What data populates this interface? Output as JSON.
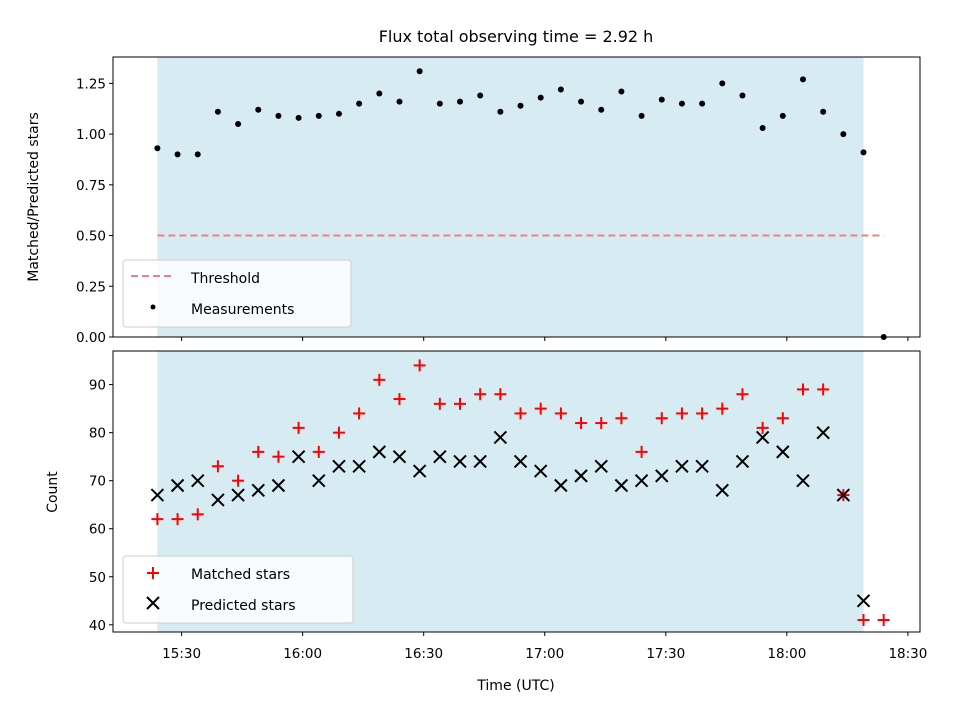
{
  "chart_data": [
    {
      "type": "scatter",
      "title": "Flux total observing time = 2.92 h",
      "xlabel": "",
      "ylabel": "Matched/Predicted stars",
      "ylim": [
        0,
        1.38
      ],
      "yticks": [
        "0.00",
        "0.25",
        "0.50",
        "0.75",
        "1.00",
        "1.25"
      ],
      "xtick_labels_visible": false,
      "threshold": {
        "name": "Threshold",
        "value": 0.5,
        "color": "#f08080"
      },
      "series": [
        {
          "name": "Measurements",
          "color": "#000000",
          "marker": "dot",
          "points": [
            [
              "15:24",
              0.93
            ],
            [
              "15:29",
              0.9
            ],
            [
              "15:34",
              0.9
            ],
            [
              "15:39",
              1.11
            ],
            [
              "15:44",
              1.05
            ],
            [
              "15:49",
              1.12
            ],
            [
              "15:54",
              1.09
            ],
            [
              "15:59",
              1.08
            ],
            [
              "16:04",
              1.09
            ],
            [
              "16:09",
              1.1
            ],
            [
              "16:14",
              1.15
            ],
            [
              "16:19",
              1.2
            ],
            [
              "16:24",
              1.16
            ],
            [
              "16:29",
              1.31
            ],
            [
              "16:34",
              1.15
            ],
            [
              "16:39",
              1.16
            ],
            [
              "16:44",
              1.19
            ],
            [
              "16:49",
              1.11
            ],
            [
              "16:54",
              1.14
            ],
            [
              "16:59",
              1.18
            ],
            [
              "17:04",
              1.22
            ],
            [
              "17:09",
              1.16
            ],
            [
              "17:14",
              1.12
            ],
            [
              "17:19",
              1.21
            ],
            [
              "17:24",
              1.09
            ],
            [
              "17:29",
              1.17
            ],
            [
              "17:34",
              1.15
            ],
            [
              "17:39",
              1.15
            ],
            [
              "17:44",
              1.25
            ],
            [
              "17:49",
              1.19
            ],
            [
              "17:54",
              1.03
            ],
            [
              "17:59",
              1.09
            ],
            [
              "18:04",
              1.27
            ],
            [
              "18:09",
              1.11
            ],
            [
              "18:14",
              1.0
            ],
            [
              "18:19",
              0.91
            ],
            [
              "18:24",
              0.0
            ]
          ]
        }
      ]
    },
    {
      "type": "scatter",
      "title": "",
      "xlabel": "Time (UTC)",
      "ylabel": "Count",
      "ylim": [
        38.5,
        97
      ],
      "yticks": [
        "40",
        "50",
        "60",
        "70",
        "80",
        "90"
      ],
      "xticks": [
        "15:30",
        "16:00",
        "16:30",
        "17:00",
        "17:30",
        "18:00",
        "18:30"
      ],
      "series": [
        {
          "name": "Matched stars",
          "color": "#ff0000",
          "marker": "plus",
          "points": [
            [
              "15:24",
              62
            ],
            [
              "15:29",
              62
            ],
            [
              "15:34",
              63
            ],
            [
              "15:39",
              73
            ],
            [
              "15:44",
              70
            ],
            [
              "15:49",
              76
            ],
            [
              "15:54",
              75
            ],
            [
              "15:59",
              81
            ],
            [
              "16:04",
              76
            ],
            [
              "16:09",
              80
            ],
            [
              "16:14",
              84
            ],
            [
              "16:19",
              91
            ],
            [
              "16:24",
              87
            ],
            [
              "16:29",
              94
            ],
            [
              "16:34",
              86
            ],
            [
              "16:39",
              86
            ],
            [
              "16:44",
              88
            ],
            [
              "16:49",
              88
            ],
            [
              "16:54",
              84
            ],
            [
              "16:59",
              85
            ],
            [
              "17:04",
              84
            ],
            [
              "17:09",
              82
            ],
            [
              "17:14",
              82
            ],
            [
              "17:19",
              83
            ],
            [
              "17:24",
              76
            ],
            [
              "17:29",
              83
            ],
            [
              "17:34",
              84
            ],
            [
              "17:39",
              84
            ],
            [
              "17:44",
              85
            ],
            [
              "17:49",
              88
            ],
            [
              "17:54",
              81
            ],
            [
              "17:59",
              83
            ],
            [
              "18:04",
              89
            ],
            [
              "18:09",
              89
            ],
            [
              "18:14",
              67
            ],
            [
              "18:19",
              41
            ],
            [
              "18:24",
              41
            ]
          ]
        },
        {
          "name": "Predicted stars",
          "color": "#000000",
          "marker": "x",
          "points": [
            [
              "15:24",
              67
            ],
            [
              "15:29",
              69
            ],
            [
              "15:34",
              70
            ],
            [
              "15:39",
              66
            ],
            [
              "15:44",
              67
            ],
            [
              "15:49",
              68
            ],
            [
              "15:54",
              69
            ],
            [
              "15:59",
              75
            ],
            [
              "16:04",
              70
            ],
            [
              "16:09",
              73
            ],
            [
              "16:14",
              73
            ],
            [
              "16:19",
              76
            ],
            [
              "16:24",
              75
            ],
            [
              "16:29",
              72
            ],
            [
              "16:34",
              75
            ],
            [
              "16:39",
              74
            ],
            [
              "16:44",
              74
            ],
            [
              "16:49",
              79
            ],
            [
              "16:54",
              74
            ],
            [
              "16:59",
              72
            ],
            [
              "17:04",
              69
            ],
            [
              "17:09",
              71
            ],
            [
              "17:14",
              73
            ],
            [
              "17:19",
              69
            ],
            [
              "17:24",
              70
            ],
            [
              "17:29",
              71
            ],
            [
              "17:34",
              73
            ],
            [
              "17:39",
              73
            ],
            [
              "17:44",
              68
            ],
            [
              "17:49",
              74
            ],
            [
              "17:54",
              79
            ],
            [
              "17:59",
              76
            ],
            [
              "18:04",
              70
            ],
            [
              "18:09",
              80
            ],
            [
              "18:14",
              67
            ],
            [
              "18:19",
              45
            ]
          ]
        }
      ]
    }
  ],
  "shared_x": {
    "domain": [
      "15:13",
      "18:33"
    ],
    "observing_span": [
      "15:24",
      "18:19"
    ],
    "span_color": "#add8e6"
  },
  "legends": {
    "top": {
      "placement": "lower-left",
      "entries": [
        "Threshold",
        "Measurements"
      ]
    },
    "bottom": {
      "placement": "lower-left",
      "entries": [
        "Matched stars",
        "Predicted stars"
      ]
    }
  }
}
